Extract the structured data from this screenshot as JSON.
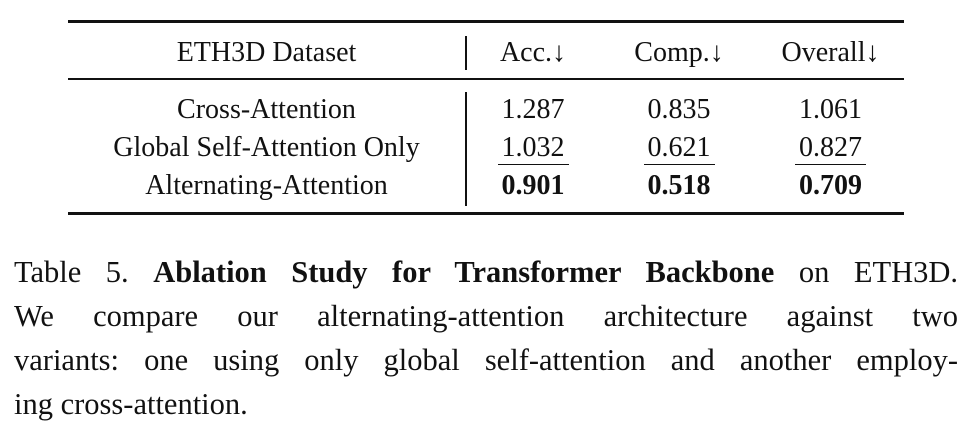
{
  "table": {
    "header": {
      "dataset": "ETH3D Dataset",
      "acc": "Acc.↓",
      "comp": "Comp.↓",
      "overall": "Overall↓"
    },
    "rows": [
      {
        "method": "Cross-Attention",
        "acc": "1.287",
        "comp": "0.835",
        "overall": "1.061",
        "style": "normal"
      },
      {
        "method": "Global Self-Attention Only",
        "acc": "1.032",
        "comp": "0.621",
        "overall": "0.827",
        "style": "underline"
      },
      {
        "method": "Alternating-Attention",
        "acc": "0.901",
        "comp": "0.518",
        "overall": "0.709",
        "style": "bold"
      }
    ]
  },
  "caption": {
    "label": "Table 5.",
    "title": "Ablation Study for Transformer Backbone",
    "title_suffix": "on ETH3D.",
    "line2": "We compare our alternating-attention architecture against two",
    "line3": "variants: one using only global self-attention and another employ-",
    "line4": "ing cross-attention."
  }
}
